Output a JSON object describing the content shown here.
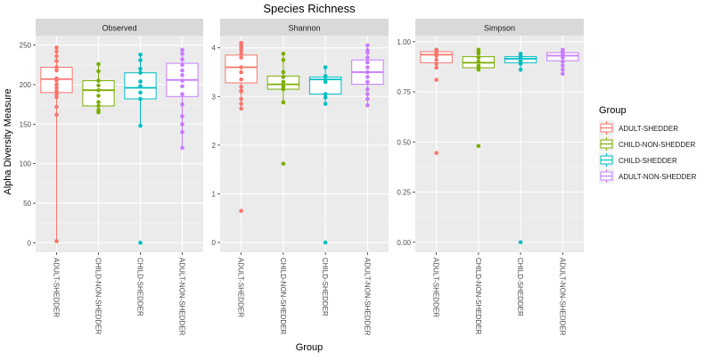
{
  "chart_data": {
    "type": "boxplot",
    "title": "Species Richness",
    "xlabel": "Group",
    "ylabel": "Alpha Diversity Measure",
    "categories": [
      "ADULT-SHEDDER",
      "CHILD-NON-SHEDDER",
      "CHILD-SHEDDER",
      "ADULT-NON-SHEDDER"
    ],
    "legend": {
      "title": "Group",
      "position": "right",
      "entries": [
        {
          "name": "ADULT-SHEDDER",
          "color": "#F8766D"
        },
        {
          "name": "CHILD-NON-SHEDDER",
          "color": "#7CAE00"
        },
        {
          "name": "CHILD-SHEDDER",
          "color": "#00BFC4"
        },
        {
          "name": "ADULT-NON-SHEDDER",
          "color": "#C77CFF"
        }
      ]
    },
    "grid": true,
    "panels": [
      {
        "name": "Observed",
        "ylim": [
          -12,
          262
        ],
        "yticks": [
          0,
          50,
          100,
          150,
          200,
          250
        ],
        "ytick_labels": [
          "0",
          "50",
          "100",
          "150",
          "200",
          "250"
        ],
        "boxes": [
          {
            "group": "ADULT-SHEDDER",
            "whisker_low": 2,
            "q1": 190,
            "median": 207,
            "q3": 222,
            "whisker_high": 247,
            "points": [
              247,
              242,
              236,
              230,
              222,
              218,
              208,
              205,
              200,
              196,
              192,
              188,
              184,
              172,
              162,
              2
            ]
          },
          {
            "group": "CHILD-NON-SHEDDER",
            "whisker_low": 165,
            "q1": 173,
            "median": 193,
            "q3": 205,
            "whisker_high": 226,
            "points": [
              226,
              217,
              205,
              199,
              193,
              186,
              178,
              173,
              168,
              165
            ]
          },
          {
            "group": "CHILD-SHEDDER",
            "whisker_low": 148,
            "q1": 182,
            "median": 196,
            "q3": 215,
            "whisker_high": 238,
            "points": [
              238,
              231,
              220,
              215,
              204,
              198,
              190,
              182,
              148,
              0
            ]
          },
          {
            "group": "ADULT-NON-SHEDDER",
            "whisker_low": 120,
            "q1": 185,
            "median": 206,
            "q3": 227,
            "whisker_high": 244,
            "points": [
              244,
              239,
              232,
              225,
              218,
              212,
              205,
              198,
              188,
              175,
              160,
              150,
              140,
              120
            ]
          }
        ]
      },
      {
        "name": "Shannon",
        "ylim": [
          -0.2,
          4.25
        ],
        "yticks": [
          0,
          1,
          2,
          3,
          4
        ],
        "ytick_labels": [
          "0",
          "1",
          "2",
          "3",
          "4"
        ],
        "boxes": [
          {
            "group": "ADULT-SHEDDER",
            "whisker_low": 2.75,
            "q1": 3.28,
            "median": 3.6,
            "q3": 3.85,
            "whisker_high": 4.1,
            "points": [
              4.1,
              4.05,
              4.0,
              3.95,
              3.88,
              3.8,
              3.6,
              3.5,
              3.35,
              3.2,
              3.12,
              3.1,
              2.95,
              2.85,
              2.75,
              0.65
            ]
          },
          {
            "group": "CHILD-NON-SHEDDER",
            "whisker_low": 2.88,
            "q1": 3.15,
            "median": 3.25,
            "q3": 3.42,
            "whisker_high": 3.88,
            "points": [
              3.88,
              3.75,
              3.5,
              3.4,
              3.3,
              3.2,
              3.15,
              2.88,
              1.62
            ]
          },
          {
            "group": "CHILD-SHEDDER",
            "whisker_low": 2.85,
            "q1": 3.05,
            "median": 3.35,
            "q3": 3.4,
            "whisker_high": 3.6,
            "points": [
              3.6,
              3.42,
              3.35,
              3.3,
              3.05,
              2.98,
              2.85,
              0.0
            ]
          },
          {
            "group": "ADULT-NON-SHEDDER",
            "whisker_low": 2.82,
            "q1": 3.25,
            "median": 3.5,
            "q3": 3.75,
            "whisker_high": 4.05,
            "points": [
              4.05,
              3.95,
              3.9,
              3.8,
              3.7,
              3.6,
              3.5,
              3.4,
              3.3,
              3.15,
              3.05,
              2.95,
              2.82
            ]
          }
        ]
      },
      {
        "name": "Simpson",
        "ylim": [
          -0.05,
          1.03
        ],
        "yticks": [
          0.0,
          0.25,
          0.5,
          0.75,
          1.0
        ],
        "ytick_labels": [
          "0.00",
          "0.25",
          "0.50",
          "0.75",
          "1.00"
        ],
        "boxes": [
          {
            "group": "ADULT-SHEDDER",
            "whisker_low": 0.87,
            "q1": 0.895,
            "median": 0.935,
            "q3": 0.95,
            "whisker_high": 0.96,
            "points": [
              0.96,
              0.955,
              0.95,
              0.94,
              0.93,
              0.91,
              0.89,
              0.87,
              0.81,
              0.445
            ]
          },
          {
            "group": "CHILD-NON-SHEDDER",
            "whisker_low": 0.86,
            "q1": 0.87,
            "median": 0.895,
            "q3": 0.925,
            "whisker_high": 0.96,
            "points": [
              0.96,
              0.95,
              0.94,
              0.92,
              0.9,
              0.88,
              0.87,
              0.86,
              0.48
            ]
          },
          {
            "group": "CHILD-SHEDDER",
            "whisker_low": 0.86,
            "q1": 0.895,
            "median": 0.915,
            "q3": 0.925,
            "whisker_high": 0.94,
            "points": [
              0.94,
              0.93,
              0.92,
              0.91,
              0.9,
              0.89,
              0.86,
              0.0
            ]
          },
          {
            "group": "ADULT-NON-SHEDDER",
            "whisker_low": 0.835,
            "q1": 0.905,
            "median": 0.93,
            "q3": 0.945,
            "whisker_high": 0.96,
            "points": [
              0.96,
              0.955,
              0.95,
              0.94,
              0.93,
              0.92,
              0.9,
              0.88,
              0.86,
              0.84
            ]
          }
        ]
      }
    ]
  }
}
